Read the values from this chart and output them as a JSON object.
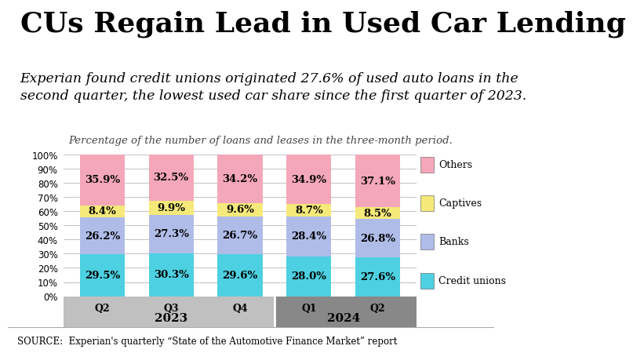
{
  "title": "CUs Regain Lead in Used Car Lending",
  "subtitle": "Experian found credit unions originated 27.6% of used auto loans in the\nsecond quarter, the lowest used car share since the first quarter of 2023.",
  "chart_note": "Percentage of the number of loans and leases in the three-month period.",
  "source": "SOURCE:  Experian's quarterly “State of the Automotive Finance Market” report",
  "categories": [
    "Q2",
    "Q3",
    "Q4",
    "Q1",
    "Q2"
  ],
  "credit_unions": [
    29.5,
    30.3,
    29.6,
    28.0,
    27.6
  ],
  "banks": [
    26.2,
    27.3,
    26.7,
    28.4,
    26.8
  ],
  "captives": [
    8.4,
    9.9,
    9.6,
    8.7,
    8.5
  ],
  "others": [
    35.9,
    32.5,
    34.2,
    34.9,
    37.1
  ],
  "colors": {
    "credit_unions": "#4dd0e1",
    "banks": "#b0bce8",
    "captives": "#f5e97a",
    "others": "#f4a7b9"
  },
  "bar_width": 0.65,
  "ylim": [
    0,
    100
  ],
  "yticks": [
    0,
    10,
    20,
    30,
    40,
    50,
    60,
    70,
    80,
    90,
    100
  ],
  "background_color": "#ffffff",
  "year_bg_2023": "#c0c0c0",
  "year_bg_2024": "#888888",
  "title_fontsize": 26,
  "subtitle_fontsize": 12.5,
  "note_fontsize": 9.5,
  "label_fontsize": 9.5,
  "source_fontsize": 8.5,
  "legend_fontsize": 9
}
